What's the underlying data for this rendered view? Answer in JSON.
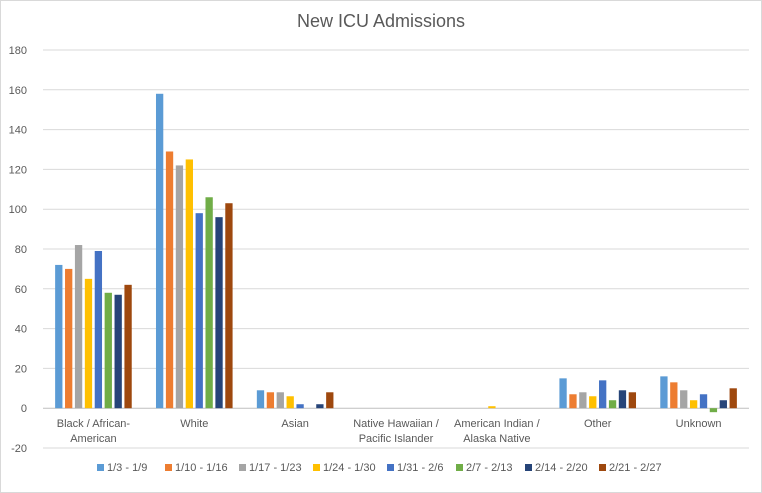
{
  "chart_data": {
    "type": "bar",
    "title": "New ICU Admissions",
    "xlabel": "",
    "ylabel": "",
    "ylim": [
      -20,
      180
    ],
    "yticks": [
      -20,
      0,
      20,
      40,
      60,
      80,
      100,
      120,
      140,
      160,
      180
    ],
    "grid": true,
    "legend_position": "bottom",
    "categories": [
      [
        "Black / African-",
        "American"
      ],
      [
        "White"
      ],
      [
        "Asian"
      ],
      [
        "Native Hawaiian /",
        "Pacific Islander"
      ],
      [
        "American Indian /",
        "Alaska Native"
      ],
      [
        "Other"
      ],
      [
        "Unknown"
      ]
    ],
    "series": [
      {
        "name": "1/3 - 1/9",
        "color": "#5B9BD5",
        "values": [
          72,
          158,
          9,
          0,
          0,
          15,
          16
        ]
      },
      {
        "name": "1/10 - 1/16",
        "color": "#ED7D31",
        "values": [
          70,
          129,
          8,
          0,
          0,
          7,
          13
        ]
      },
      {
        "name": "1/17 - 1/23",
        "color": "#A5A5A5",
        "values": [
          82,
          122,
          8,
          0,
          0,
          8,
          9
        ]
      },
      {
        "name": "1/24 - 1/30",
        "color": "#FFC000",
        "values": [
          65,
          125,
          6,
          0,
          1,
          6,
          4
        ]
      },
      {
        "name": "1/31 - 2/6",
        "color": "#4472C4",
        "values": [
          79,
          98,
          2,
          0,
          0,
          14,
          7
        ]
      },
      {
        "name": "2/7 - 2/13",
        "color": "#70AD47",
        "values": [
          58,
          106,
          0,
          0,
          0,
          4,
          -2
        ]
      },
      {
        "name": "2/14 - 2/20",
        "color": "#264478",
        "values": [
          57,
          96,
          2,
          0,
          0,
          9,
          4
        ]
      },
      {
        "name": "2/21 - 2/27",
        "color": "#9E480E",
        "values": [
          62,
          103,
          8,
          0,
          0,
          8,
          10
        ]
      }
    ]
  }
}
